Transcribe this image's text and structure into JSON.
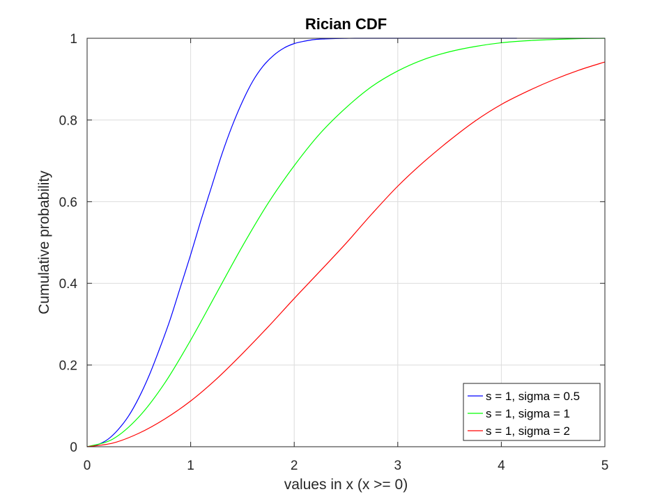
{
  "chart_data": {
    "type": "line",
    "title": "Rician CDF",
    "xlabel": "values in x (x >= 0)",
    "ylabel": "Cumulative probability",
    "xlim": [
      0,
      5
    ],
    "ylim": [
      0,
      1
    ],
    "xticks": [
      0,
      1,
      2,
      3,
      4,
      5
    ],
    "yticks": [
      0,
      0.2,
      0.4,
      0.6,
      0.8,
      1
    ],
    "xtick_labels": [
      "0",
      "1",
      "2",
      "3",
      "4",
      "5"
    ],
    "ytick_labels": [
      "0",
      "0.2",
      "0.4",
      "0.6",
      "0.8",
      "1"
    ],
    "grid": true,
    "legend_position": "bottom-right",
    "series": [
      {
        "name": "s = 1, sigma = 0.5",
        "color": "#0000ff",
        "x": [
          0,
          0.1,
          0.2,
          0.3,
          0.4,
          0.5,
          0.6,
          0.7,
          0.8,
          0.9,
          1.0,
          1.1,
          1.2,
          1.3,
          1.4,
          1.5,
          1.6,
          1.7,
          1.8,
          1.9,
          2.0,
          2.1,
          2.2,
          2.3,
          2.4,
          2.5,
          2.6,
          2.8,
          3.0,
          3.5,
          4.0,
          4.15
        ],
        "y": [
          0,
          0.005,
          0.018,
          0.042,
          0.075,
          0.12,
          0.175,
          0.24,
          0.31,
          0.39,
          0.47,
          0.555,
          0.635,
          0.715,
          0.785,
          0.845,
          0.895,
          0.932,
          0.958,
          0.976,
          0.987,
          0.993,
          0.997,
          0.9985,
          0.9994,
          0.9998,
          1.0,
          1.0,
          1.0,
          1.0,
          1.0,
          1.0
        ]
      },
      {
        "name": "s = 1, sigma = 1",
        "color": "#00ff00",
        "x": [
          0,
          0.25,
          0.5,
          0.75,
          1.0,
          1.25,
          1.5,
          1.75,
          2.0,
          2.25,
          2.5,
          2.75,
          3.0,
          3.25,
          3.5,
          3.75,
          4.0,
          4.25,
          4.5,
          4.75,
          5.0
        ],
        "y": [
          0,
          0.019,
          0.073,
          0.156,
          0.261,
          0.376,
          0.491,
          0.597,
          0.688,
          0.767,
          0.83,
          0.882,
          0.92,
          0.948,
          0.967,
          0.98,
          0.989,
          0.994,
          0.997,
          0.999,
          1.0
        ]
      },
      {
        "name": "s = 1, sigma = 2",
        "color": "#ff0000",
        "x": [
          0,
          0.25,
          0.5,
          0.75,
          1.0,
          1.25,
          1.5,
          1.75,
          2.0,
          2.25,
          2.5,
          2.75,
          3.0,
          3.25,
          3.5,
          3.75,
          4.0,
          4.25,
          4.5,
          4.75,
          5.0
        ],
        "y": [
          0,
          0.009,
          0.033,
          0.068,
          0.112,
          0.166,
          0.228,
          0.294,
          0.363,
          0.43,
          0.498,
          0.57,
          0.638,
          0.697,
          0.75,
          0.798,
          0.838,
          0.87,
          0.898,
          0.922,
          0.942
        ]
      }
    ]
  }
}
